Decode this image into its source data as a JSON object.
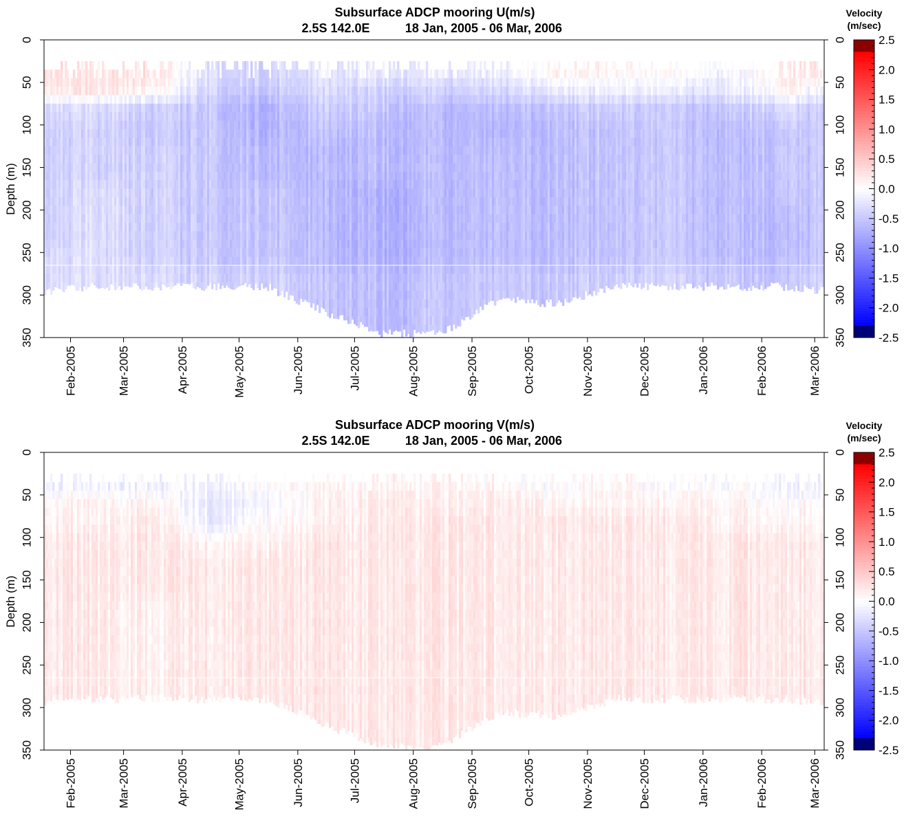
{
  "chart_data": [
    {
      "type": "heatmap",
      "title": "Subsurface ADCP mooring U(m/s)",
      "subtitle_location": "2.5S 142.0E",
      "subtitle_period": "18 Jan, 2005 - 06 Mar, 2006",
      "ylabel": "Depth (m)",
      "xlabel": "",
      "ylim": [
        0,
        350
      ],
      "y_ticks": [
        "0",
        "50",
        "100",
        "150",
        "200",
        "250",
        "300",
        "350"
      ],
      "x_ticks": [
        "Feb-2005",
        "Mar-2005",
        "Apr-2005",
        "May-2005",
        "Jun-2005",
        "Jul-2005",
        "Aug-2005",
        "Sep-2005",
        "Oct-2005",
        "Nov-2005",
        "Dec-2005",
        "Jan-2006",
        "Feb-2006",
        "Mar-2006"
      ],
      "colorbar": {
        "title_line1": "Velocity",
        "title_line2": "(m/sec)",
        "range": [
          -2.5,
          2.5
        ],
        "labels": [
          "2.5",
          "2.0",
          "1.5",
          "1.0",
          "0.5",
          "0.0",
          "-0.5",
          "-1.0",
          "-1.5",
          "-2.0",
          "-2.5"
        ]
      },
      "x_dates": [
        "2005-01-18",
        "2005-02-15",
        "2005-03-15",
        "2005-04-15",
        "2005-05-15",
        "2005-06-15",
        "2005-07-15",
        "2005-08-15",
        "2005-09-15",
        "2005-10-15",
        "2005-11-15",
        "2005-12-15",
        "2006-01-15",
        "2006-02-15",
        "2006-03-06"
      ],
      "depth_levels_m": [
        35,
        55,
        75,
        100,
        125,
        150,
        175,
        200,
        225,
        250,
        275
      ],
      "values_m_per_s": [
        [
          0.3,
          0.2,
          0.3,
          -0.3,
          -0.4,
          -0.2,
          -0.2,
          -0.2,
          -0.2,
          0.1,
          0.1,
          0.0,
          -0.1,
          0.2,
          0.2
        ],
        [
          0.2,
          0.2,
          0.1,
          -0.4,
          -0.5,
          -0.3,
          -0.4,
          -0.4,
          -0.4,
          -0.2,
          -0.1,
          -0.2,
          -0.2,
          0.1,
          -0.2
        ],
        [
          -0.3,
          -0.3,
          -0.4,
          -0.5,
          -0.7,
          -0.4,
          -0.5,
          -0.6,
          -0.6,
          -0.5,
          -0.4,
          -0.5,
          -0.5,
          -0.3,
          -0.5
        ],
        [
          -0.4,
          -0.4,
          -0.5,
          -0.5,
          -0.7,
          -0.5,
          -0.6,
          -0.6,
          -0.7,
          -0.6,
          -0.5,
          -0.5,
          -0.6,
          -0.5,
          -0.5
        ],
        [
          -0.4,
          -0.4,
          -0.4,
          -0.5,
          -0.6,
          -0.6,
          -0.6,
          -0.6,
          -0.6,
          -0.6,
          -0.5,
          -0.5,
          -0.6,
          -0.5,
          -0.5
        ],
        [
          -0.4,
          -0.4,
          -0.4,
          -0.5,
          -0.6,
          -0.6,
          -0.6,
          -0.6,
          -0.6,
          -0.6,
          -0.5,
          -0.5,
          -0.6,
          -0.5,
          -0.5
        ],
        [
          -0.4,
          -0.3,
          -0.4,
          -0.5,
          -0.5,
          -0.6,
          -0.7,
          -0.6,
          -0.6,
          -0.6,
          -0.5,
          -0.5,
          -0.6,
          -0.5,
          -0.5
        ],
        [
          -0.4,
          -0.3,
          -0.4,
          -0.5,
          -0.5,
          -0.6,
          -0.7,
          -0.6,
          -0.6,
          -0.6,
          -0.5,
          -0.5,
          -0.6,
          -0.6,
          -0.5
        ],
        [
          -0.4,
          -0.3,
          -0.4,
          -0.5,
          -0.5,
          -0.6,
          -0.7,
          -0.6,
          -0.6,
          -0.6,
          -0.5,
          -0.5,
          -0.6,
          -0.6,
          -0.5
        ],
        [
          -0.3,
          -0.3,
          -0.4,
          -0.5,
          -0.5,
          -0.6,
          -0.7,
          -0.6,
          -0.6,
          -0.6,
          -0.5,
          -0.5,
          -0.6,
          -0.6,
          -0.5
        ],
        [
          -0.3,
          -0.3,
          -0.3,
          -0.4,
          -0.4,
          -0.5,
          -0.6,
          -0.5,
          -0.5,
          -0.5,
          -0.4,
          -0.4,
          -0.5,
          -0.5,
          -0.4
        ]
      ],
      "data_bottom_m": [
        295,
        290,
        290,
        290,
        290,
        320,
        345,
        345,
        305,
        310,
        290,
        290,
        290,
        290,
        295
      ],
      "data_top_m": 25,
      "grid": false,
      "legend": "colorbar-right"
    },
    {
      "type": "heatmap",
      "title": "Subsurface ADCP mooring V(m/s)",
      "subtitle_location": "2.5S 142.0E",
      "subtitle_period": "18 Jan, 2005 - 06 Mar, 2006",
      "ylabel": "Depth (m)",
      "xlabel": "",
      "ylim": [
        0,
        350
      ],
      "y_ticks": [
        "0",
        "50",
        "100",
        "150",
        "200",
        "250",
        "300",
        "350"
      ],
      "x_ticks": [
        "Feb-2005",
        "Mar-2005",
        "Apr-2005",
        "May-2005",
        "Jun-2005",
        "Jul-2005",
        "Aug-2005",
        "Sep-2005",
        "Oct-2005",
        "Nov-2005",
        "Dec-2005",
        "Jan-2006",
        "Feb-2006",
        "Mar-2006"
      ],
      "colorbar": {
        "title_line1": "Velocity",
        "title_line2": "(m/sec)",
        "range": [
          -2.5,
          2.5
        ],
        "labels": [
          "2.5",
          "2.0",
          "1.5",
          "1.0",
          "0.5",
          "0.0",
          "-0.5",
          "-1.0",
          "-1.5",
          "-2.0",
          "-2.5"
        ]
      },
      "x_dates": [
        "2005-01-18",
        "2005-02-15",
        "2005-03-15",
        "2005-04-15",
        "2005-05-15",
        "2005-06-15",
        "2005-07-15",
        "2005-08-15",
        "2005-09-15",
        "2005-10-15",
        "2005-11-15",
        "2005-12-15",
        "2006-01-15",
        "2006-02-15",
        "2006-03-06"
      ],
      "depth_levels_m": [
        35,
        55,
        75,
        100,
        125,
        150,
        175,
        200,
        225,
        250,
        275
      ],
      "values_m_per_s": [
        [
          -0.1,
          -0.1,
          -0.1,
          -0.1,
          0.0,
          0.1,
          0.1,
          0.1,
          0.1,
          0.0,
          0.1,
          0.0,
          0.0,
          -0.1,
          -0.1
        ],
        [
          0.1,
          0.1,
          0.1,
          -0.2,
          -0.1,
          0.1,
          0.2,
          0.1,
          0.2,
          0.1,
          0.1,
          0.1,
          0.1,
          0.0,
          0.1
        ],
        [
          0.1,
          0.1,
          0.2,
          -0.2,
          0.0,
          0.1,
          0.2,
          0.2,
          0.2,
          0.2,
          0.2,
          0.2,
          0.1,
          0.1,
          0.1
        ],
        [
          0.2,
          0.2,
          0.2,
          0.1,
          0.1,
          0.2,
          0.2,
          0.2,
          0.2,
          0.2,
          0.2,
          0.2,
          0.2,
          0.2,
          0.2
        ],
        [
          0.2,
          0.2,
          0.2,
          0.2,
          0.2,
          0.2,
          0.2,
          0.2,
          0.2,
          0.2,
          0.2,
          0.2,
          0.2,
          0.2,
          0.2
        ],
        [
          0.2,
          0.2,
          0.2,
          0.2,
          0.2,
          0.2,
          0.2,
          0.2,
          0.2,
          0.2,
          0.2,
          0.2,
          0.2,
          0.2,
          0.2
        ],
        [
          0.2,
          0.2,
          0.1,
          0.2,
          0.2,
          0.2,
          0.2,
          0.2,
          0.2,
          0.2,
          0.2,
          0.2,
          0.2,
          0.2,
          0.2
        ],
        [
          0.2,
          0.2,
          0.1,
          0.2,
          0.2,
          0.2,
          0.2,
          0.2,
          0.2,
          0.2,
          0.2,
          0.2,
          0.2,
          0.2,
          0.2
        ],
        [
          0.2,
          0.2,
          0.1,
          0.2,
          0.2,
          0.2,
          0.2,
          0.2,
          0.2,
          0.2,
          0.2,
          0.2,
          0.2,
          0.2,
          0.2
        ],
        [
          0.2,
          0.2,
          0.1,
          0.2,
          0.2,
          0.2,
          0.2,
          0.2,
          0.2,
          0.2,
          0.2,
          0.2,
          0.2,
          0.2,
          0.2
        ],
        [
          0.2,
          0.2,
          0.1,
          0.2,
          0.2,
          0.2,
          0.2,
          0.2,
          0.2,
          0.2,
          0.2,
          0.2,
          0.2,
          0.2,
          0.2
        ]
      ],
      "data_bottom_m": [
        295,
        290,
        290,
        290,
        290,
        320,
        345,
        345,
        305,
        310,
        290,
        290,
        290,
        290,
        295
      ],
      "data_top_m": 25,
      "grid": false,
      "legend": "colorbar-right"
    }
  ]
}
